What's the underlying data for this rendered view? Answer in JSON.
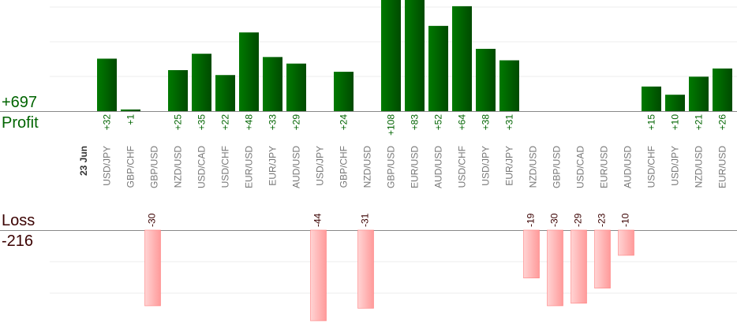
{
  "summary": {
    "profit_total": "+697",
    "profit_label": "Profit",
    "loss_label": "Loss",
    "loss_total": "-216"
  },
  "chart_data": {
    "type": "bar",
    "date_label": "23 Jun",
    "categories": [
      "USD/JPY",
      "GBP/CHF",
      "GBP/USD",
      "NZD/USD",
      "USD/CAD",
      "USD/CHF",
      "EUR/USD",
      "EUR/JPY",
      "AUD/USD",
      "USD/JPY",
      "GBP/CHF",
      "NZD/USD",
      "GBP/USD",
      "EUR/USD",
      "AUD/USD",
      "USD/CHF",
      "USD/JPY",
      "EUR/JPY",
      "NZD/USD",
      "GBP/USD",
      "USD/CAD",
      "EUR/USD",
      "AUD/USD",
      "USD/CHF",
      "USD/JPY",
      "NZD/USD",
      "EUR/USD"
    ],
    "series": [
      {
        "name": "Profit",
        "values": [
          32,
          1,
          null,
          25,
          35,
          22,
          48,
          33,
          29,
          null,
          24,
          null,
          108,
          83,
          52,
          64,
          38,
          31,
          null,
          null,
          null,
          null,
          null,
          15,
          10,
          21,
          26
        ],
        "labels": [
          "+32",
          "+1",
          "",
          "+25",
          "+35",
          "+22",
          "+48",
          "+33",
          "+29",
          "",
          "+24",
          "",
          "+108",
          "+83",
          "+52",
          "+64",
          "+38",
          "+31",
          "",
          "",
          "",
          "",
          "",
          "+15",
          "+10",
          "+21",
          "+26"
        ]
      },
      {
        "name": "Loss",
        "values": [
          null,
          null,
          -30,
          null,
          null,
          null,
          null,
          null,
          null,
          -44,
          null,
          -31,
          null,
          null,
          null,
          null,
          null,
          null,
          -19,
          -30,
          -29,
          -23,
          -10,
          null,
          null,
          null,
          null
        ],
        "labels": [
          "",
          "",
          "-30",
          "",
          "",
          "",
          "",
          "",
          "",
          "-44",
          "",
          "-31",
          "",
          "",
          "",
          "",
          "",
          "",
          "-19",
          "-30",
          "-29",
          "-23",
          "-10",
          "",
          "",
          "",
          ""
        ]
      }
    ],
    "colors": {
      "profit": "#006400",
      "loss": "#ffaaaa",
      "profit_text": "#006400",
      "loss_text": "#3a0000"
    }
  }
}
